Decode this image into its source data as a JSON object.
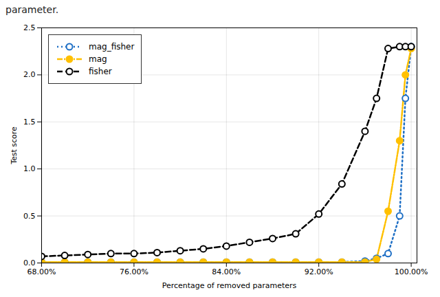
{
  "chart_data": {
    "type": "line",
    "title": "parameter.",
    "xlabel": "Percentage of removed parameters",
    "ylabel": "Test score",
    "x": [
      0.68,
      0.7,
      0.72,
      0.74,
      0.76,
      0.78,
      0.8,
      0.82,
      0.84,
      0.86,
      0.88,
      0.9,
      0.92,
      0.94,
      0.96,
      0.97,
      0.98,
      0.99,
      0.995,
      1.0
    ],
    "series": [
      {
        "name": "mag_fisher",
        "color": "#1e6fc5",
        "marker": "open circle",
        "line_style": "dotted",
        "values": [
          0.01,
          0.01,
          0.01,
          0.01,
          0.01,
          0.01,
          0.01,
          0.01,
          0.01,
          0.01,
          0.01,
          0.01,
          0.01,
          0.01,
          0.02,
          0.05,
          0.1,
          0.5,
          1.75,
          2.3
        ]
      },
      {
        "name": "mag",
        "color": "#ffc000",
        "marker": "circle",
        "line_style": "dashdot",
        "values": [
          0.01,
          0.01,
          0.01,
          0.01,
          0.01,
          0.01,
          0.01,
          0.01,
          0.01,
          0.01,
          0.01,
          0.01,
          0.01,
          0.01,
          0.01,
          0.04,
          0.55,
          1.3,
          2.0,
          2.28
        ]
      },
      {
        "name": "fisher",
        "color": "#000000",
        "marker": "open circle",
        "line_style": "dashed",
        "values": [
          0.07,
          0.08,
          0.09,
          0.1,
          0.1,
          0.11,
          0.13,
          0.15,
          0.18,
          0.22,
          0.26,
          0.31,
          0.52,
          0.84,
          1.4,
          1.75,
          2.28,
          2.3,
          2.3,
          2.3
        ]
      }
    ],
    "xlim": [
      0.68,
      1.005
    ],
    "ylim": [
      0,
      2.5
    ],
    "xticks": [
      {
        "value": 0.68,
        "label": "68.00%"
      },
      {
        "value": 0.76,
        "label": "76.00%"
      },
      {
        "value": 0.84,
        "label": "84.00%"
      },
      {
        "value": 0.92,
        "label": "92.00%"
      },
      {
        "value": 1.0,
        "label": "100.00%"
      }
    ],
    "yticks": [
      {
        "value": 0,
        "label": "0.0"
      },
      0.5,
      {
        "value": 1.0,
        "label": "1.0"
      },
      1.5,
      {
        "value": 2.0,
        "label": "2.0"
      },
      2.5
    ],
    "grid": true,
    "legend": "upper left"
  }
}
